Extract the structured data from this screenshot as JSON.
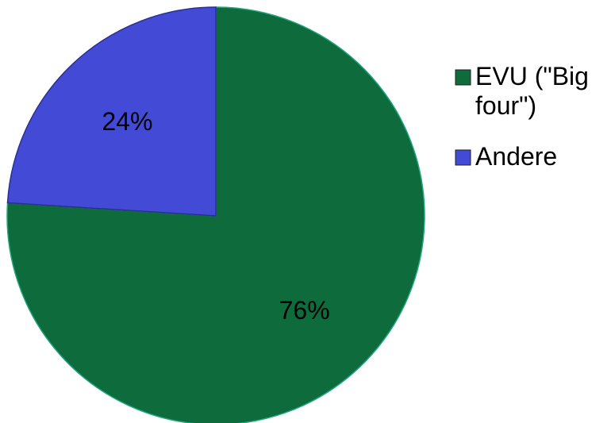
{
  "chart_data": {
    "type": "pie",
    "slices": [
      {
        "label": "EVU (\"Big four\")",
        "legend_lines": [
          "EVU (\"Big",
          "four\")"
        ],
        "value": 76,
        "value_label": "76%",
        "color": "#0e6b3c",
        "stroke": "#1fa57a"
      },
      {
        "label": "Andere",
        "legend_lines": [
          "Andere"
        ],
        "value": 24,
        "value_label": "24%",
        "color": "#434bd6",
        "stroke": "#2b2f8f"
      }
    ],
    "legend_position": "right"
  }
}
